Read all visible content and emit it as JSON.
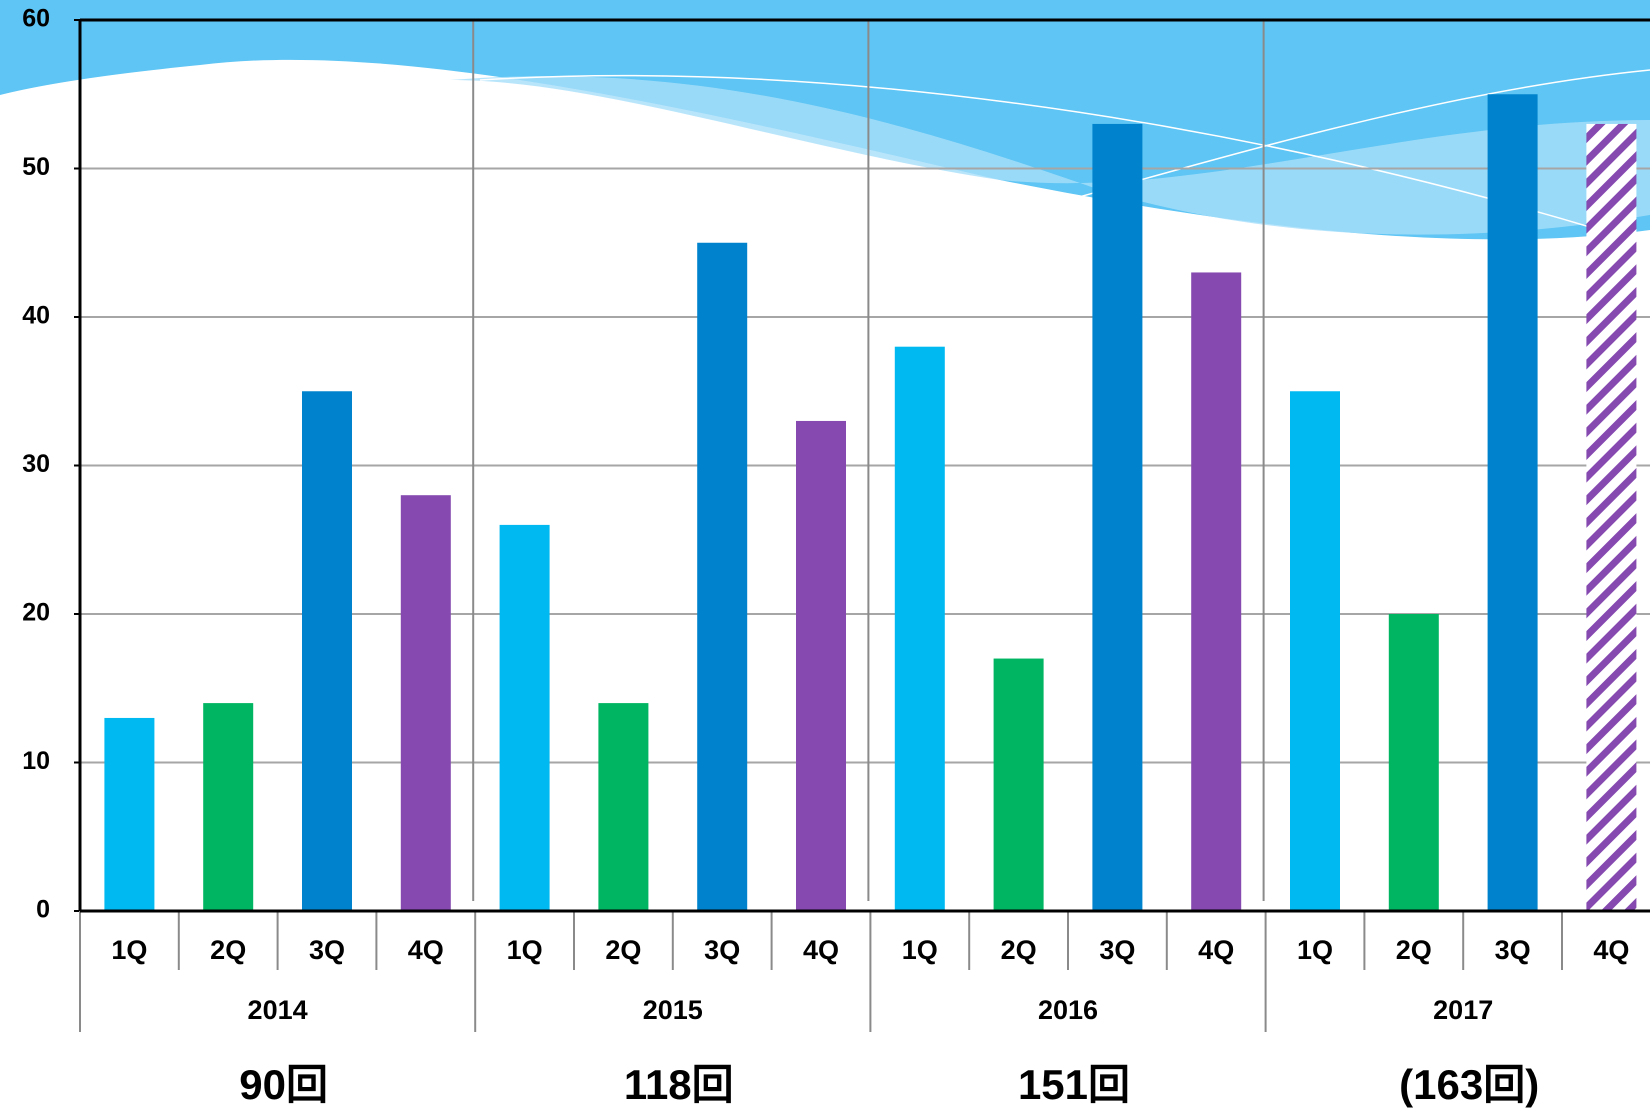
{
  "chart_data": {
    "type": "bar",
    "categories": [
      "1Q",
      "2Q",
      "3Q",
      "4Q",
      "1Q",
      "2Q",
      "3Q",
      "4Q",
      "1Q",
      "2Q",
      "3Q",
      "4Q",
      "1Q",
      "2Q",
      "3Q",
      "4Q"
    ],
    "values": [
      13,
      14,
      35,
      28,
      26,
      14,
      45,
      33,
      38,
      17,
      53,
      43,
      35,
      20,
      55,
      53
    ],
    "colors": [
      "#00b9f1",
      "#00b562",
      "#0083cc",
      "#8549b0",
      "#00b9f1",
      "#00b562",
      "#0083cc",
      "#8549b0",
      "#00b9f1",
      "#00b562",
      "#0083cc",
      "#8549b0",
      "#00b9f1",
      "#00b562",
      "#0083cc",
      "#8549b0"
    ],
    "hatched": [
      false,
      false,
      false,
      false,
      false,
      false,
      false,
      false,
      false,
      false,
      false,
      false,
      false,
      false,
      false,
      true
    ],
    "groups": [
      {
        "label": "2014",
        "total": "90回"
      },
      {
        "label": "2015",
        "total": "118回"
      },
      {
        "label": "2016",
        "total": "151回"
      },
      {
        "label": "2017",
        "total": "(163回)"
      }
    ],
    "ylim": [
      0,
      60
    ],
    "yticks": [
      0,
      10,
      20,
      30,
      40,
      50,
      60
    ],
    "grid": true
  }
}
